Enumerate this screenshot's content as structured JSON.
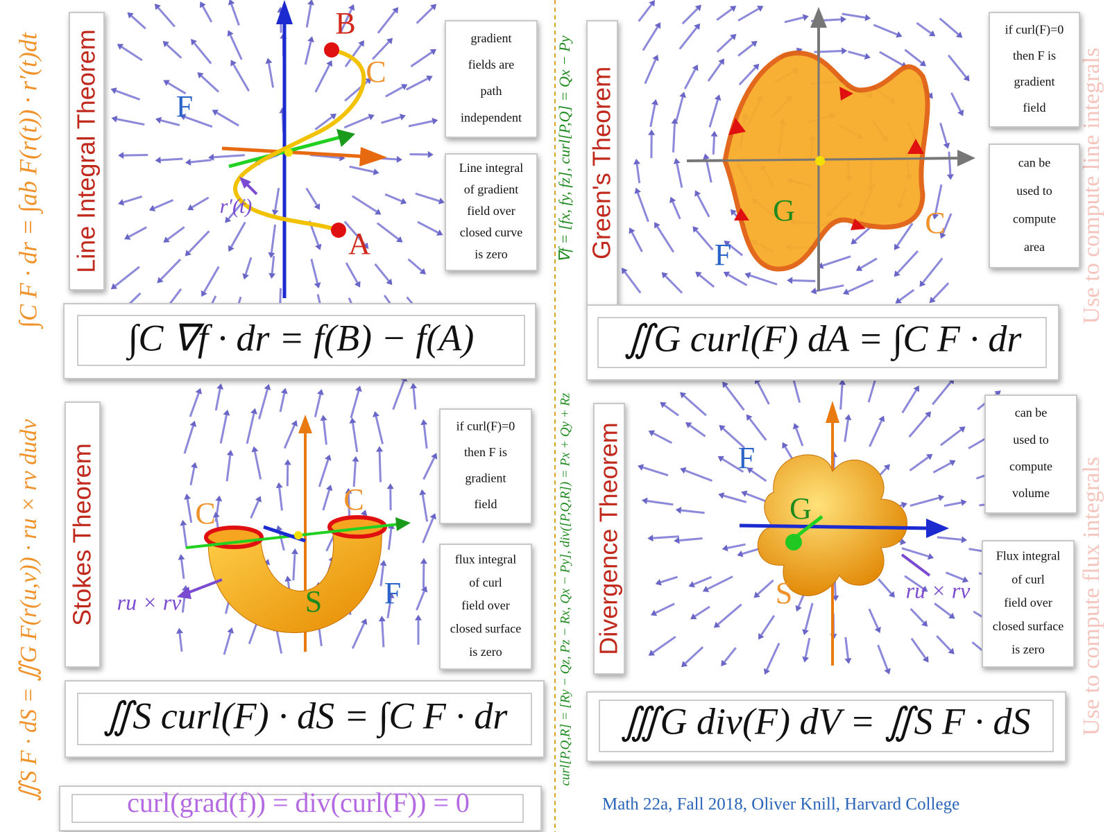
{
  "side_left": {
    "top": "∫C F · dr = ∫ab F(r(t)) · r′(t)dt",
    "bottom": "∬S F · dS = ∬G F(r(u,v)) · ru × rv dudv"
  },
  "side_middle": {
    "top": "∇f = [fx, fy, fz], curl[P,Q] = Qx − Py",
    "bottom": "curl[P,Q,R] = [Ry − Qz, Pz − Rx, Qx − Py], div([P,Q,R]) = Px + Qy + Rz"
  },
  "side_right": {
    "top": "Use to compute line integrals",
    "bottom": "Use to compute flux integrals"
  },
  "panels": [
    {
      "title": "Line  Integral Theorem",
      "labels": [
        "B",
        "C",
        "F",
        "A",
        "r′(t)"
      ],
      "notes": [
        [
          "gradient",
          "fields are",
          "path",
          "independent"
        ],
        [
          "Line integral",
          "of gradient",
          "field over",
          "closed curve",
          "is zero"
        ]
      ],
      "formula": "∫C ∇f · dr = f(B) − f(A)"
    },
    {
      "title": "Green's Theorem",
      "labels": [
        "G",
        "C",
        "F"
      ],
      "notes": [
        [
          "if curl(F)=0",
          "then  F is",
          "gradient",
          "field"
        ],
        [
          "can be",
          "used to",
          "compute",
          "area"
        ]
      ],
      "formula": "∬G curl(F) dA = ∫C F · dr"
    },
    {
      "title": "Stokes Theorem",
      "labels": [
        "C",
        "C",
        "S",
        "F",
        "ru × rv"
      ],
      "notes": [
        [
          "if curl(F)=0",
          "then  F is",
          "gradient",
          "field"
        ],
        [
          "flux integral",
          "of curl",
          "field over",
          "closed surface",
          "is zero"
        ]
      ],
      "formula": "∬S curl(F) · dS = ∫C F · dr"
    },
    {
      "title": "Divergence Theorem",
      "labels": [
        "F",
        "G",
        "S",
        "ru × rv"
      ],
      "notes": [
        [
          "can be",
          "used to",
          "compute",
          "volume"
        ],
        [
          "Flux integral",
          "of curl",
          "field over",
          "closed surface",
          "is zero"
        ]
      ],
      "formula": "∭G div(F) dV = ∬S F · dS"
    }
  ],
  "identity": "curl(grad(f)) = div(curl(F)) = 0",
  "footer": "Math 22a, Fall 2018, Oliver Knill, Harvard College"
}
